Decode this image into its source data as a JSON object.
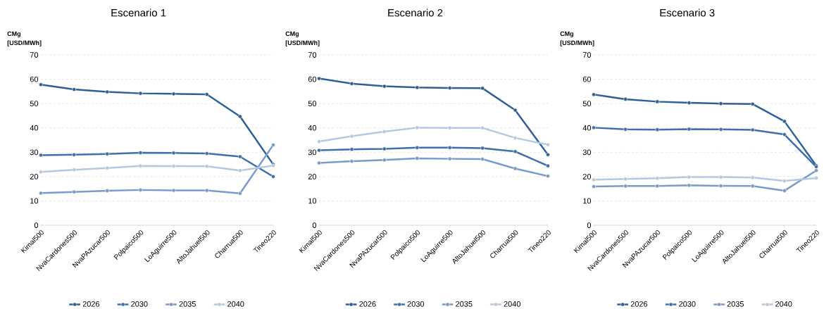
{
  "chart_data": [
    {
      "type": "line",
      "title": "Escenario 1",
      "ylabel": "CMg [USD/MWh]",
      "categories": [
        "Kimal500",
        "NvaCardones500",
        "NvaPAzucar500",
        "Polpaico500",
        "LoAguirre500",
        "AltoJahuel500",
        "Charrua500",
        "Tineo220"
      ],
      "series": [
        {
          "name": "2026",
          "color": "#2f5f98",
          "values": [
            57.8,
            55.8,
            54.8,
            54.2,
            54.0,
            53.8,
            44.7,
            25
          ]
        },
        {
          "name": "2030",
          "color": "#3f6fae",
          "values": [
            28.8,
            29.0,
            29.3,
            29.8,
            29.7,
            29.5,
            28.2,
            20
          ]
        },
        {
          "name": "2035",
          "color": "#7a9acb",
          "values": [
            13.2,
            13.7,
            14.2,
            14.5,
            14.3,
            14.3,
            13.1,
            33
          ]
        },
        {
          "name": "2040",
          "color": "#b5c7e3",
          "values": [
            21.9,
            22.8,
            23.5,
            24.4,
            24.3,
            24.2,
            22.5,
            24.5
          ]
        }
      ],
      "ylim": [
        0,
        70
      ],
      "yticks": [
        0,
        10,
        20,
        30,
        40,
        50,
        60,
        70
      ],
      "grid": "y",
      "legend": "bottom",
      "marker": "circle",
      "line_style": "solid"
    },
    {
      "type": "line",
      "title": "Escenario 2",
      "ylabel": "CMg [USD/MWh]",
      "categories": [
        "Kimal500",
        "NvaCardones500",
        "NvaPAzucar500",
        "Polpaico500",
        "LoAguirre500",
        "AltoJahuel500",
        "Charrua500",
        "Tineo220"
      ],
      "series": [
        {
          "name": "2026",
          "color": "#2f5f98",
          "values": [
            60.3,
            58.2,
            57.1,
            56.6,
            56.4,
            56.3,
            47.3,
            29
          ]
        },
        {
          "name": "2030",
          "color": "#3f6fae",
          "values": [
            30.8,
            31.2,
            31.4,
            31.9,
            31.9,
            31.7,
            30.3,
            24.4
          ]
        },
        {
          "name": "2035",
          "color": "#7a9acb",
          "values": [
            25.6,
            26.3,
            26.8,
            27.5,
            27.3,
            27.2,
            23.3,
            20.2
          ]
        },
        {
          "name": "2040",
          "color": "#b5c7e3",
          "values": [
            34.4,
            36.6,
            38.5,
            40.1,
            40.0,
            40.0,
            35.9,
            33.1
          ]
        }
      ],
      "ylim": [
        0,
        70
      ],
      "yticks": [
        0,
        10,
        20,
        30,
        40,
        50,
        60,
        70
      ],
      "grid": "y",
      "legend": "bottom",
      "marker": "circle",
      "line_style": "solid"
    },
    {
      "type": "line",
      "title": "Escenario 3",
      "ylabel": "CMg [USD/MWh]",
      "categories": [
        "Kimal500",
        "NvaCardones500",
        "NvaPAzucar500",
        "Polpaico500",
        "LoAguirre500",
        "AltoJahuel500",
        "Charrua500",
        "Tineo220"
      ],
      "series": [
        {
          "name": "2026",
          "color": "#2f5f98",
          "values": [
            53.7,
            51.8,
            50.8,
            50.3,
            50.0,
            49.8,
            42.7,
            24.5
          ]
        },
        {
          "name": "2030",
          "color": "#3f6fae",
          "values": [
            40.1,
            39.4,
            39.3,
            39.5,
            39.4,
            39.2,
            37.3,
            24
          ]
        },
        {
          "name": "2035",
          "color": "#7a9acb",
          "values": [
            15.9,
            16.1,
            16.1,
            16.4,
            16.2,
            16.1,
            14.2,
            22.5
          ]
        },
        {
          "name": "2040",
          "color": "#b5c7e3",
          "values": [
            18.7,
            19.0,
            19.3,
            19.8,
            19.8,
            19.6,
            18.2,
            19.4
          ]
        }
      ],
      "ylim": [
        0,
        70
      ],
      "yticks": [
        0,
        10,
        20,
        30,
        40,
        50,
        60,
        70
      ],
      "grid": "y",
      "legend": "bottom",
      "marker": "circle",
      "line_style": "solid"
    }
  ]
}
